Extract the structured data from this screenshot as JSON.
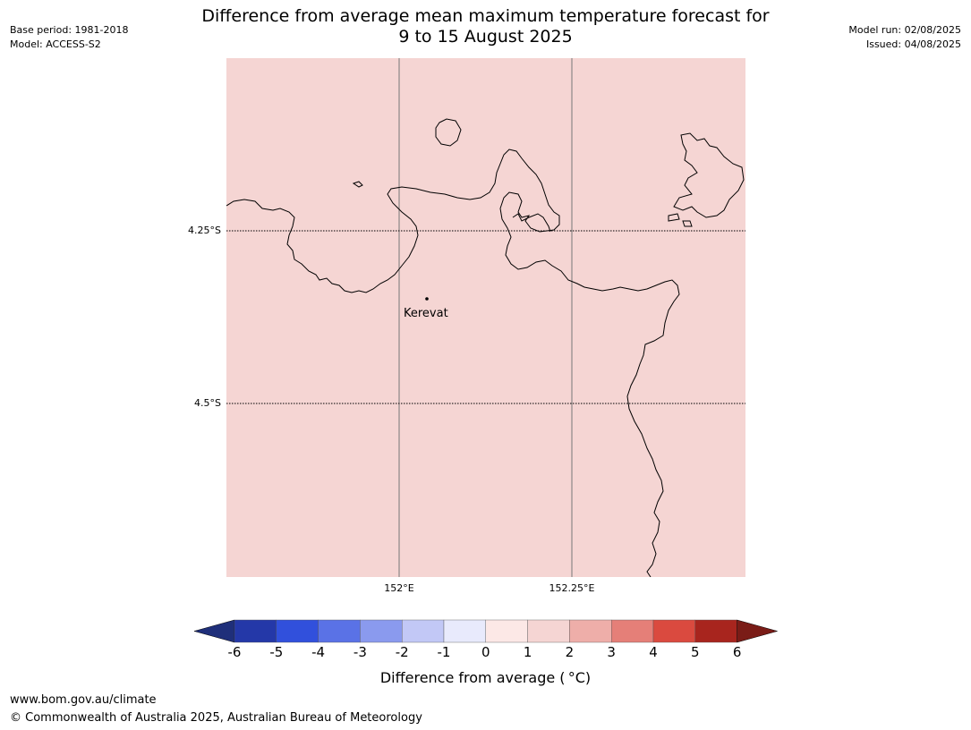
{
  "title": {
    "line1": "Difference from average mean maximum temperature forecast for",
    "line2": "9 to 15 August 2025"
  },
  "meta_left": {
    "base_period": "Base period: 1981-2018",
    "model": "Model: ACCESS-S2"
  },
  "meta_right": {
    "model_run": "Model run: 02/08/2025",
    "issued": "Issued: 04/08/2025"
  },
  "map": {
    "fill_color": "#f5d5d3",
    "place": "Kerevat",
    "lat_labels": [
      "4.25°S",
      "4.5°S"
    ],
    "lon_labels": [
      "152°E",
      "152.25°E"
    ]
  },
  "colorbar": {
    "ticks": [
      "-6",
      "-5",
      "-4",
      "-3",
      "-2",
      "-1",
      "0",
      "1",
      "2",
      "3",
      "4",
      "5",
      "6"
    ],
    "colors": [
      "#2438a8",
      "#3150dc",
      "#5a72e6",
      "#8a9aee",
      "#c2c8f6",
      "#e8eafc",
      "#fce8e6",
      "#f5d5d3",
      "#eeaea9",
      "#e57f78",
      "#da4a3f",
      "#a8251e"
    ],
    "under_color": "#1f2f7a",
    "over_color": "#7a1c17",
    "label": "Difference from average ( °C)"
  },
  "footer": {
    "url": "www.bom.gov.au/climate",
    "copyright": "© Commonwealth of Australia 2025, Australian Bureau of Meteorology"
  }
}
